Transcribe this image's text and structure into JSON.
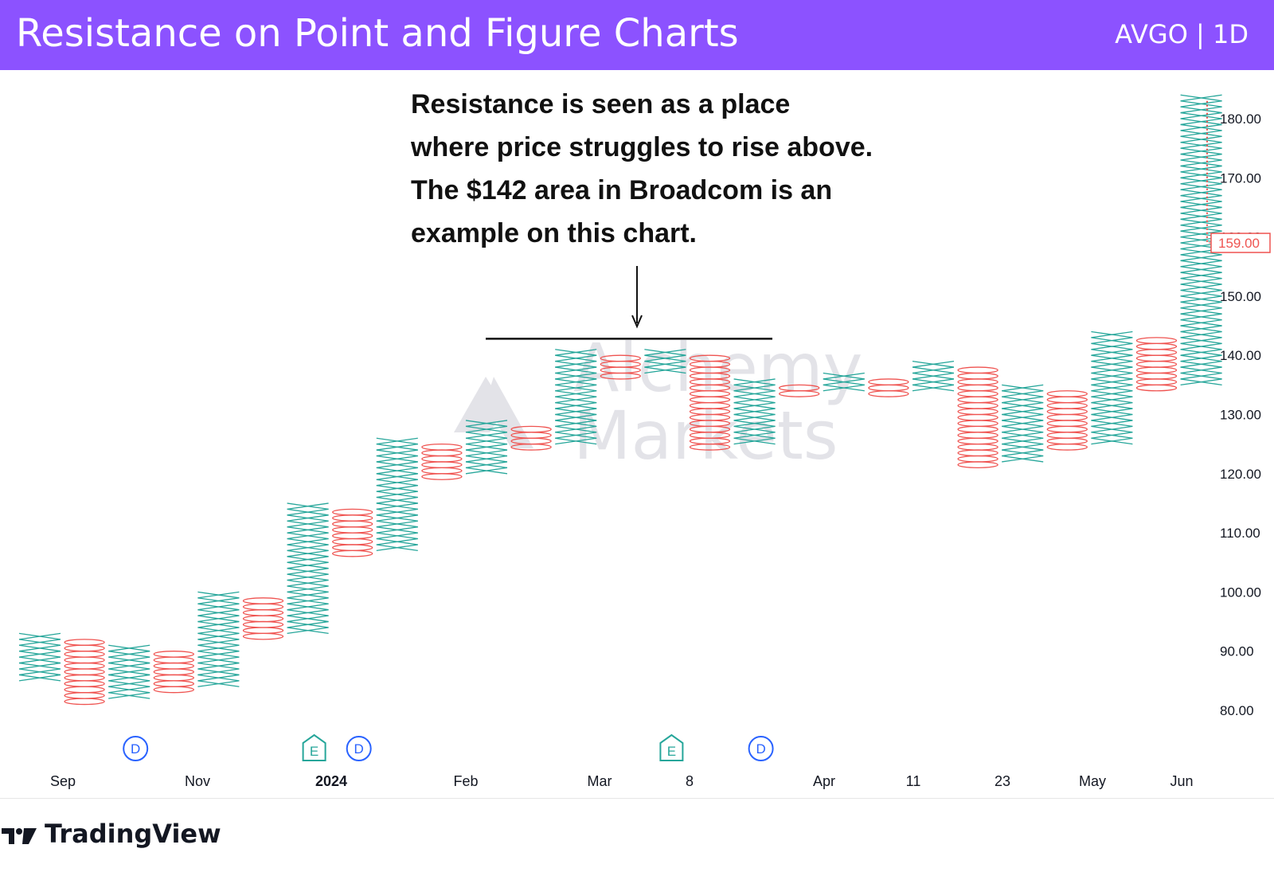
{
  "header": {
    "title": "Resistance on Point and Figure Charts",
    "ticker": "AVGO | 1D"
  },
  "annotation": {
    "lines": [
      "Resistance is seen as a place",
      "where price struggles to rise above.",
      "The $142 area in Broadcom is an",
      "example on this chart."
    ]
  },
  "watermark": {
    "line1": "Alchemy",
    "line2": "Markets"
  },
  "branding": {
    "name": "TradingView"
  },
  "colors": {
    "header_bg": "#8c52ff",
    "x_color": "#26a69a",
    "o_color": "#ef5350",
    "price_tag": "#ef5350"
  },
  "chart_data": {
    "type": "point-and-figure",
    "box_size": 1,
    "ylim": [
      76,
      190
    ],
    "y_ticks": [
      80,
      90,
      100,
      110,
      120,
      130,
      140,
      150,
      160,
      170,
      180
    ],
    "columns": [
      {
        "type": "X",
        "low": 85,
        "high": 93
      },
      {
        "type": "O",
        "low": 81,
        "high": 92
      },
      {
        "type": "X",
        "low": 82,
        "high": 91
      },
      {
        "type": "O",
        "low": 83,
        "high": 90
      },
      {
        "type": "X",
        "low": 84,
        "high": 100
      },
      {
        "type": "O",
        "low": 92,
        "high": 99
      },
      {
        "type": "X",
        "low": 93,
        "high": 115
      },
      {
        "type": "O",
        "low": 106,
        "high": 114
      },
      {
        "type": "X",
        "low": 107,
        "high": 126
      },
      {
        "type": "O",
        "low": 119,
        "high": 125
      },
      {
        "type": "X",
        "low": 120,
        "high": 129
      },
      {
        "type": "O",
        "low": 124,
        "high": 128
      },
      {
        "type": "X",
        "low": 125,
        "high": 141
      },
      {
        "type": "O",
        "low": 136,
        "high": 140
      },
      {
        "type": "X",
        "low": 137,
        "high": 141
      },
      {
        "type": "O",
        "low": 124,
        "high": 140
      },
      {
        "type": "X",
        "low": 125,
        "high": 136
      },
      {
        "type": "O",
        "low": 133,
        "high": 135
      },
      {
        "type": "X",
        "low": 134,
        "high": 137
      },
      {
        "type": "O",
        "low": 133,
        "high": 136
      },
      {
        "type": "X",
        "low": 134,
        "high": 139
      },
      {
        "type": "O",
        "low": 121,
        "high": 138
      },
      {
        "type": "X",
        "low": 122,
        "high": 135
      },
      {
        "type": "O",
        "low": 124,
        "high": 134
      },
      {
        "type": "X",
        "low": 125,
        "high": 144
      },
      {
        "type": "O",
        "low": 134,
        "high": 143
      },
      {
        "type": "X",
        "low": 135,
        "high": 184
      }
    ],
    "x_labels": [
      "Sep",
      "Nov",
      "2024",
      "Feb",
      "Mar",
      "8",
      "Apr",
      "11",
      "23",
      "May",
      "Jun"
    ],
    "events": [
      {
        "label": "D",
        "kind": "dividend",
        "column": 2
      },
      {
        "label": "E",
        "kind": "earnings",
        "column": 6
      },
      {
        "label": "D",
        "kind": "dividend",
        "column": 7
      },
      {
        "label": "E",
        "kind": "earnings",
        "column": 14
      },
      {
        "label": "D",
        "kind": "dividend",
        "column": 16
      }
    ],
    "resistance_level": 142,
    "last_price": "159.00"
  }
}
